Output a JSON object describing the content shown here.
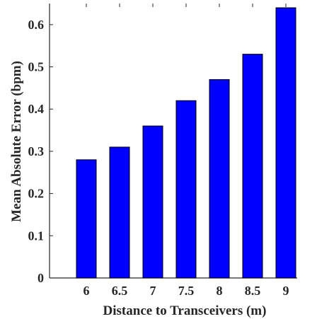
{
  "chart_data": {
    "type": "bar",
    "categories": [
      "6",
      "6.5",
      "7",
      "7.5",
      "8",
      "8.5",
      "9"
    ],
    "values": [
      0.28,
      0.31,
      0.36,
      0.42,
      0.47,
      0.53,
      0.64
    ],
    "title": "",
    "xlabel": "Distance to Transceivers (m)",
    "ylabel": "Mean Absolute Error (bpm)",
    "ylim": [
      0,
      0.65
    ],
    "yticks": [
      "0",
      "0.1",
      "0.2",
      "0.3",
      "0.4",
      "0.5",
      "0.6"
    ],
    "grid": false,
    "bar_color": "#0000ff",
    "edge_color": "#000000"
  }
}
